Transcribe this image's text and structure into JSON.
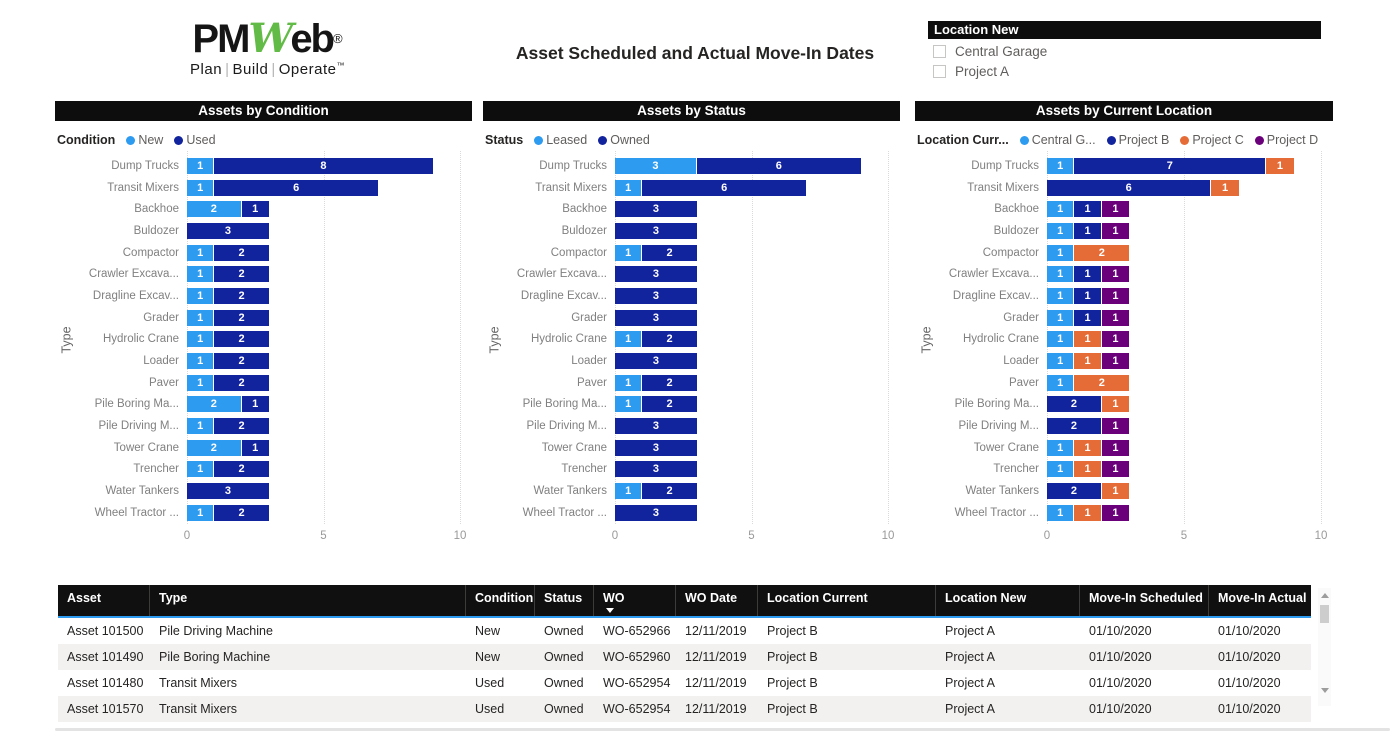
{
  "header": {
    "logo": {
      "pm": "PM",
      "w": "W",
      "eb": "eb",
      "registered": "®",
      "tagline": [
        "Plan",
        "Build",
        "Operate"
      ],
      "trademark": "™",
      "green_color": "#62BB46"
    },
    "title": "Asset Scheduled and Actual Move-In Dates"
  },
  "filter": {
    "title": "Location New",
    "options": [
      {
        "label": "Central Garage",
        "checked": false
      },
      {
        "label": "Project A",
        "checked": false
      }
    ]
  },
  "colors": {
    "light_blue": "#2D9BF0",
    "navy": "#12239E",
    "orange": "#E66C37",
    "purple": "#6B007B",
    "table_header_underline": "#2D9BF0"
  },
  "chart_data": [
    {
      "type": "bar",
      "orientation": "horizontal-stacked",
      "title": "Assets by Condition",
      "legend_title": "Condition",
      "ylabel": "Type",
      "xlim": [
        0,
        10
      ],
      "x_ticks": [
        0,
        5,
        10
      ],
      "grid": "dotted-vertical",
      "categories": [
        "Dump Trucks",
        "Transit Mixers",
        "Backhoe",
        "Buldozer",
        "Compactor",
        "Crawler Excava...",
        "Dragline Excav...",
        "Grader",
        "Hydrolic Crane",
        "Loader",
        "Paver",
        "Pile Boring Ma...",
        "Pile Driving M...",
        "Tower Crane",
        "Trencher",
        "Water Tankers",
        "Wheel Tractor ..."
      ],
      "series": [
        {
          "name": "New",
          "color": "#2D9BF0",
          "values": [
            1,
            1,
            2,
            0,
            1,
            1,
            1,
            1,
            1,
            1,
            1,
            2,
            1,
            2,
            1,
            0,
            1
          ]
        },
        {
          "name": "Used",
          "color": "#12239E",
          "values": [
            8,
            6,
            1,
            3,
            2,
            2,
            2,
            2,
            2,
            2,
            2,
            1,
            2,
            1,
            2,
            3,
            2
          ]
        }
      ]
    },
    {
      "type": "bar",
      "orientation": "horizontal-stacked",
      "title": "Assets by Status",
      "legend_title": "Status",
      "ylabel": "Type",
      "xlim": [
        0,
        10
      ],
      "x_ticks": [
        0,
        5,
        10
      ],
      "grid": "dotted-vertical",
      "categories": [
        "Dump Trucks",
        "Transit Mixers",
        "Backhoe",
        "Buldozer",
        "Compactor",
        "Crawler Excava...",
        "Dragline Excav...",
        "Grader",
        "Hydrolic Crane",
        "Loader",
        "Paver",
        "Pile Boring Ma...",
        "Pile Driving M...",
        "Tower Crane",
        "Trencher",
        "Water Tankers",
        "Wheel Tractor ..."
      ],
      "series": [
        {
          "name": "Leased",
          "color": "#2D9BF0",
          "values": [
            3,
            1,
            0,
            0,
            1,
            0,
            0,
            0,
            1,
            0,
            1,
            1,
            0,
            0,
            0,
            1,
            0
          ]
        },
        {
          "name": "Owned",
          "color": "#12239E",
          "values": [
            6,
            6,
            3,
            3,
            2,
            3,
            3,
            3,
            2,
            3,
            2,
            2,
            3,
            3,
            3,
            2,
            3
          ]
        }
      ]
    },
    {
      "type": "bar",
      "orientation": "horizontal-stacked",
      "title": "Assets by Current Location",
      "legend_title": "Location Curr...",
      "ylabel": "Type",
      "xlim": [
        0,
        10
      ],
      "x_ticks": [
        0,
        5,
        10
      ],
      "grid": "dotted-vertical",
      "categories": [
        "Dump Trucks",
        "Transit Mixers",
        "Backhoe",
        "Buldozer",
        "Compactor",
        "Crawler Excava...",
        "Dragline Excav...",
        "Grader",
        "Hydrolic Crane",
        "Loader",
        "Paver",
        "Pile Boring Ma...",
        "Pile Driving M...",
        "Tower Crane",
        "Trencher",
        "Water Tankers",
        "Wheel Tractor ..."
      ],
      "series": [
        {
          "name": "Central G...",
          "color": "#2D9BF0",
          "values": [
            1,
            0,
            1,
            1,
            1,
            1,
            1,
            1,
            1,
            1,
            1,
            0,
            0,
            1,
            1,
            0,
            1
          ]
        },
        {
          "name": "Project B",
          "color": "#12239E",
          "values": [
            7,
            6,
            1,
            1,
            0,
            1,
            1,
            1,
            0,
            0,
            0,
            2,
            2,
            0,
            0,
            2,
            0
          ]
        },
        {
          "name": "Project C",
          "color": "#E66C37",
          "values": [
            1,
            1,
            0,
            0,
            2,
            0,
            0,
            0,
            1,
            1,
            2,
            1,
            0,
            1,
            1,
            1,
            1
          ]
        },
        {
          "name": "Project D",
          "color": "#6B007B",
          "values": [
            0,
            0,
            1,
            1,
            0,
            1,
            1,
            1,
            1,
            1,
            0,
            0,
            1,
            1,
            1,
            0,
            1
          ]
        }
      ]
    }
  ],
  "table": {
    "columns": [
      {
        "label": "Asset"
      },
      {
        "label": "Type"
      },
      {
        "label": "Condition"
      },
      {
        "label": "Status"
      },
      {
        "label": "WO",
        "sorted": "desc"
      },
      {
        "label": "WO Date"
      },
      {
        "label": "Location Current"
      },
      {
        "label": "Location New"
      },
      {
        "label": "Move-In Scheduled"
      },
      {
        "label": "Move-In Actual"
      }
    ],
    "rows": [
      [
        "Asset 101500",
        "Pile Driving Machine",
        "New",
        "Owned",
        "WO-652966",
        "12/11/2019",
        "Project B",
        "Project A",
        "01/10/2020",
        "01/10/2020"
      ],
      [
        "Asset 101490",
        "Pile Boring Machine",
        "New",
        "Owned",
        "WO-652960",
        "12/11/2019",
        "Project B",
        "Project A",
        "01/10/2020",
        "01/10/2020"
      ],
      [
        "Asset 101480",
        "Transit Mixers",
        "Used",
        "Owned",
        "WO-652954",
        "12/11/2019",
        "Project B",
        "Project A",
        "01/10/2020",
        "01/10/2020"
      ],
      [
        "Asset 101570",
        "Transit Mixers",
        "Used",
        "Owned",
        "WO-652954",
        "12/11/2019",
        "Project B",
        "Project A",
        "01/10/2020",
        "01/10/2020"
      ]
    ]
  }
}
